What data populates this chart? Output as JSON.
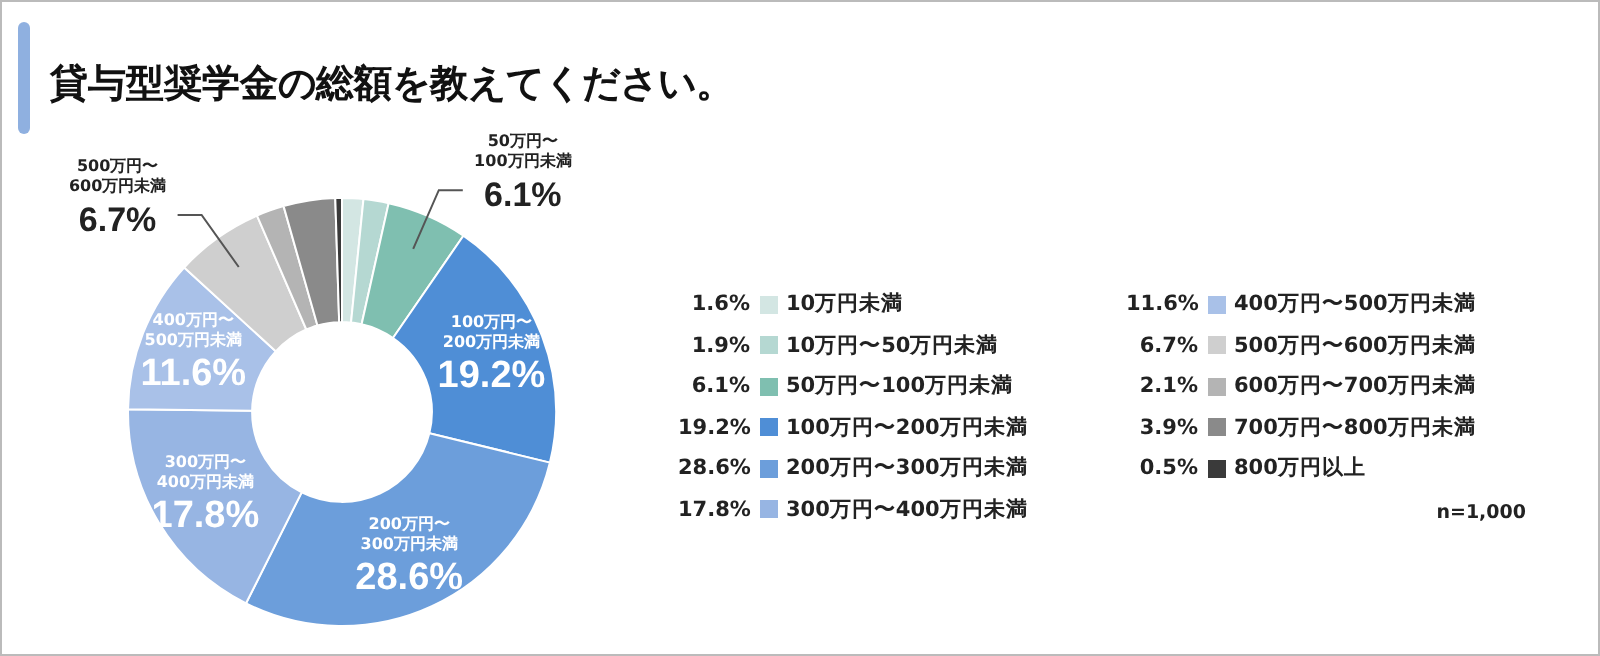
{
  "chart_data": {
    "type": "donut",
    "title": "貸与型奨学金の総額を教えてください。",
    "categories": [
      "10万円未満",
      "10万円〜50万円未満",
      "50万円〜100万円未満",
      "100万円〜200万円未満",
      "200万円〜300万円未満",
      "300万円〜400万円未満",
      "400万円〜500万円未満",
      "500万円〜600万円未満",
      "600万円〜700万円未満",
      "700万円〜800万円未満",
      "800万円以上"
    ],
    "values": [
      1.6,
      1.9,
      6.1,
      19.2,
      28.6,
      17.8,
      11.6,
      6.7,
      2.1,
      3.9,
      0.5
    ],
    "colors": [
      "#d3e6e3",
      "#b5d8d2",
      "#7fbfb0",
      "#4f8ed6",
      "#6c9edb",
      "#97b5e3",
      "#a9c1e8",
      "#cfcfcf",
      "#b4b4b4",
      "#8a8a8a",
      "#3a3a3a"
    ],
    "value_labels": [
      "1.6%",
      "1.9%",
      "6.1%",
      "19.2%",
      "28.6%",
      "17.8%",
      "11.6%",
      "6.7%",
      "2.1%",
      "3.9%",
      "0.5%"
    ],
    "legend": "right",
    "annotations": [
      "n=1,000"
    ]
  }
}
